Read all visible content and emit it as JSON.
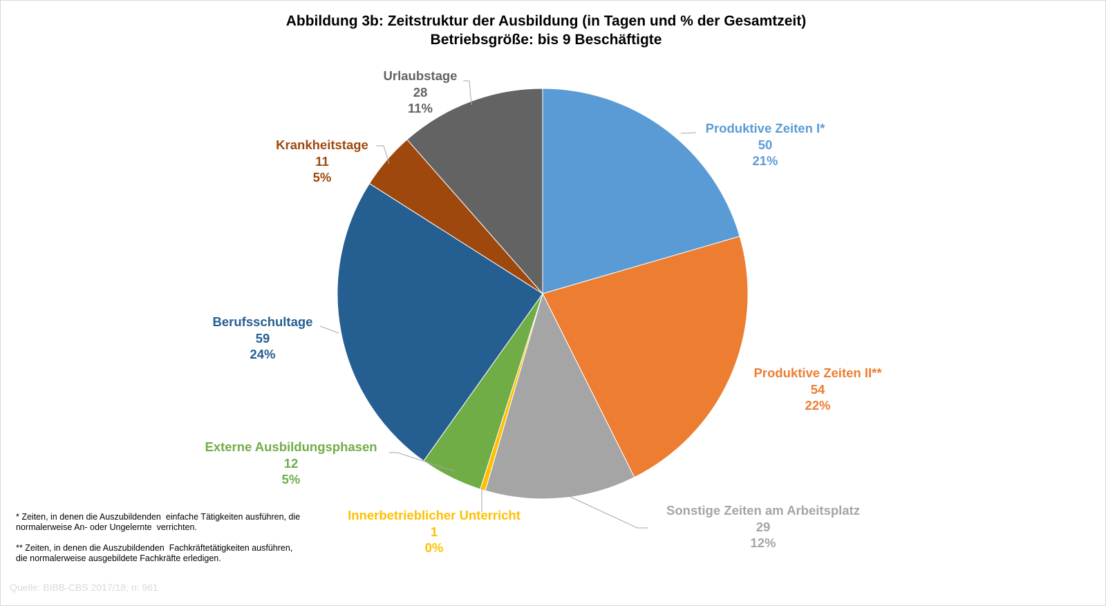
{
  "chart_data": {
    "type": "pie",
    "title": "Abbildung 3b: Zeitstruktur der Ausbildung (in Tagen und % der Gesamtzeit)",
    "subtitle": "Betriebsgröße: bis 9 Beschäftigte",
    "start_angle_deg": 0,
    "direction": "clockwise",
    "slices": [
      {
        "label": "Produktive Zeiten I*",
        "value": 50,
        "percent": "21%",
        "color": "#5B9BD5",
        "label_color": "#5B9BD5"
      },
      {
        "label": "Produktive Zeiten II**",
        "value": 54,
        "percent": "22%",
        "color": "#ED7D31",
        "label_color": "#ED7D31"
      },
      {
        "label": "Sonstige Zeiten am Arbeitsplatz",
        "value": 29,
        "percent": "12%",
        "color": "#A5A5A5",
        "label_color": "#A5A5A5"
      },
      {
        "label": "Innerbetrieblicher Unterricht",
        "value": 1,
        "percent": "0%",
        "color": "#FFC000",
        "label_color": "#FFC000"
      },
      {
        "label": "Externe Ausbildungsphasen",
        "value": 12,
        "percent": "5%",
        "color": "#70AD47",
        "label_color": "#70AD47"
      },
      {
        "label": "Berufsschultage",
        "value": 59,
        "percent": "24%",
        "color": "#255E91",
        "label_color": "#255E91"
      },
      {
        "label": "Krankheitstage",
        "value": 11,
        "percent": "5%",
        "color": "#9E480E",
        "label_color": "#9E480E"
      },
      {
        "label": "Urlaubstage",
        "value": 28,
        "percent": "11%",
        "color": "#636363",
        "label_color": "#636363"
      }
    ]
  },
  "footnotes": {
    "note1_line1": "* Zeiten, in denen die Auszubildenden  einfache Tätigkeiten ausführen, die",
    "note1_line2": "normalerweise An- oder Ungelernte  verrichten.",
    "note2_line1": "** Zeiten, in denen die Auszubildenden  Fachkräftetätigkeiten ausführen,",
    "note2_line2": "die normalerweise ausgebildete Fachkräfte erledigen."
  },
  "source": "Quelle: BIBB-CBS 2017/18; n: 961"
}
